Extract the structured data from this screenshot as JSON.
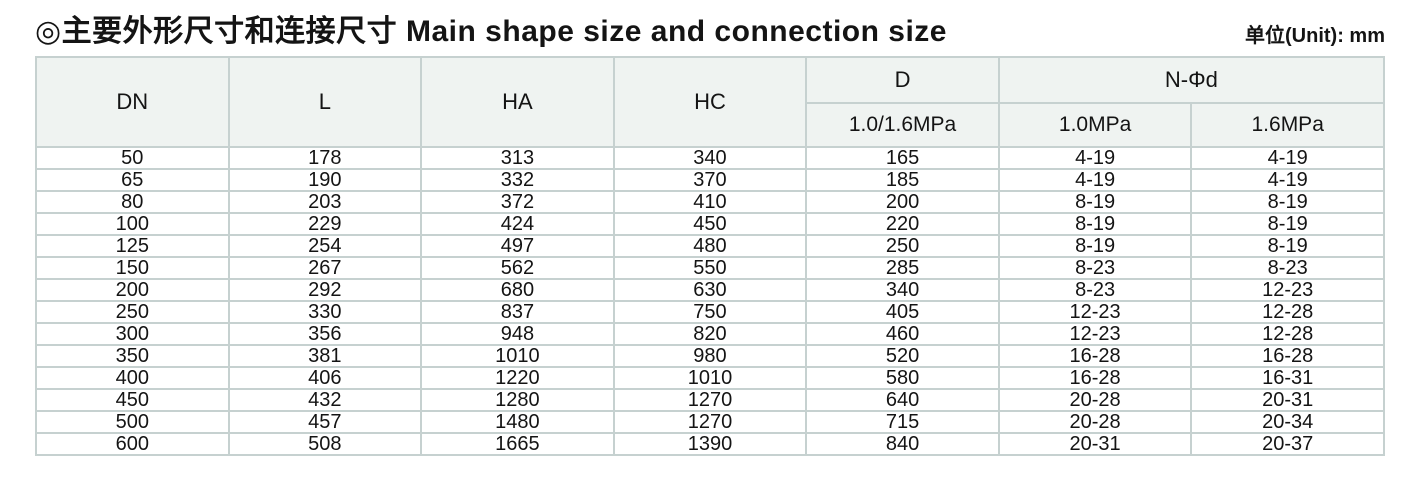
{
  "page": {
    "title": "◎主要外形尺寸和连接尺寸 Main shape size and connection size",
    "unit_label": "单位(Unit): mm"
  },
  "colors": {
    "header_bg": "#eff3f1",
    "border": "#c6d1d0",
    "row_bg": "#ffffff",
    "text": "#141414"
  },
  "table": {
    "header": {
      "dn": "DN",
      "l": "L",
      "ha": "HA",
      "hc": "HC",
      "d": "D",
      "nphid": "N-Φd",
      "sub_d": "1.0/1.6MPa",
      "sub_n1": "1.0MPa",
      "sub_n2": "1.6MPa"
    },
    "rows": [
      [
        "50",
        "178",
        "313",
        "340",
        "165",
        "4-19",
        "4-19"
      ],
      [
        "65",
        "190",
        "332",
        "370",
        "185",
        "4-19",
        "4-19"
      ],
      [
        "80",
        "203",
        "372",
        "410",
        "200",
        "8-19",
        "8-19"
      ],
      [
        "100",
        "229",
        "424",
        "450",
        "220",
        "8-19",
        "8-19"
      ],
      [
        "125",
        "254",
        "497",
        "480",
        "250",
        "8-19",
        "8-19"
      ],
      [
        "150",
        "267",
        "562",
        "550",
        "285",
        "8-23",
        "8-23"
      ],
      [
        "200",
        "292",
        "680",
        "630",
        "340",
        "8-23",
        "12-23"
      ],
      [
        "250",
        "330",
        "837",
        "750",
        "405",
        "12-23",
        "12-28"
      ],
      [
        "300",
        "356",
        "948",
        "820",
        "460",
        "12-23",
        "12-28"
      ],
      [
        "350",
        "381",
        "1010",
        "980",
        "520",
        "16-28",
        "16-28"
      ],
      [
        "400",
        "406",
        "1220",
        "1010",
        "580",
        "16-28",
        "16-31"
      ],
      [
        "450",
        "432",
        "1280",
        "1270",
        "640",
        "20-28",
        "20-31"
      ],
      [
        "500",
        "457",
        "1480",
        "1270",
        "715",
        "20-28",
        "20-34"
      ],
      [
        "600",
        "508",
        "1665",
        "1390",
        "840",
        "20-31",
        "20-37"
      ]
    ]
  }
}
